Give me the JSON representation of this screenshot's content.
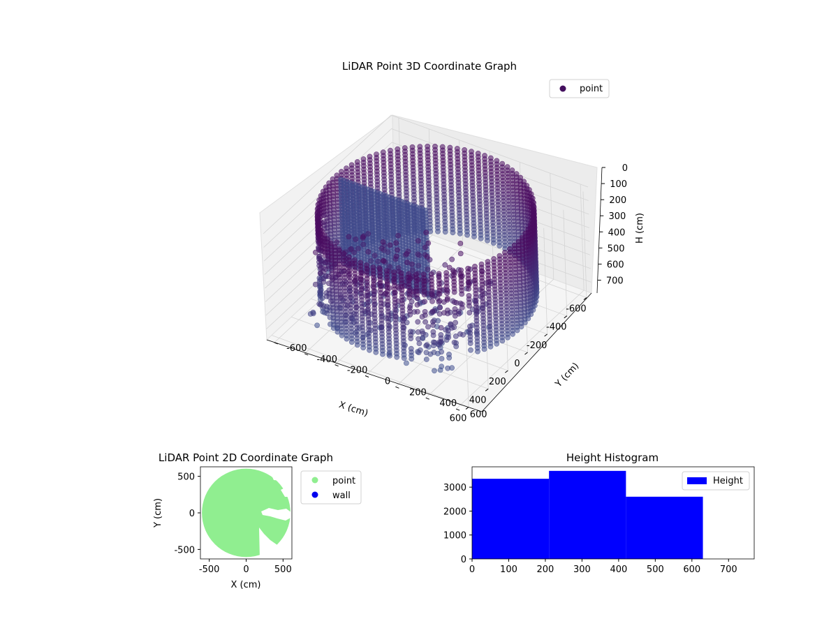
{
  "chart_data": [
    {
      "type": "scatter",
      "projection": "3d",
      "title": "LiDAR Point 3D Coordinate Graph",
      "xlabel": "X (cm)",
      "ylabel": "Y (cm)",
      "zlabel": "H (cm)",
      "xlim": [
        -650,
        650
      ],
      "ylim": [
        -650,
        650
      ],
      "zlim": [
        780,
        0
      ],
      "xticks": [
        -600,
        -400,
        -200,
        0,
        200,
        400,
        600
      ],
      "yticks": [
        -600,
        -400,
        -200,
        0,
        200,
        400,
        600
      ],
      "zticks": [
        0,
        100,
        200,
        300,
        400,
        500,
        600,
        700
      ],
      "legend": {
        "position": "top-right",
        "entries": [
          {
            "name": "point",
            "color": "#440f5e"
          }
        ]
      },
      "colormap": "viridis-purple-blue",
      "series": [
        {
          "name": "wall ring",
          "shape": "cylinder",
          "radius_cm": 600,
          "height_range_cm": [
            0,
            630
          ]
        },
        {
          "name": "scattered objects",
          "approx_region": {
            "x": [
              0,
              600
            ],
            "y": [
              -300,
              500
            ],
            "h": [
              100,
              700
            ]
          }
        }
      ],
      "grid": true
    },
    {
      "type": "scatter",
      "title": "LiDAR Point 2D Coordinate Graph",
      "xlabel": "X (cm)",
      "ylabel": "Y (cm)",
      "xlim": [
        -620,
        620
      ],
      "ylim": [
        -630,
        630
      ],
      "xticks": [
        -500,
        0,
        500
      ],
      "yticks": [
        -500,
        0,
        500
      ],
      "legend": {
        "position": "outside-right",
        "entries": [
          {
            "name": "point",
            "color": "#90ee90"
          },
          {
            "name": "wall",
            "color": "#0000ee"
          }
        ]
      },
      "series": [
        {
          "name": "point",
          "color": "#90ee90",
          "shape": "filled disk",
          "radius_cm": 600
        }
      ]
    },
    {
      "type": "bar",
      "subtype": "histogram",
      "title": "Height Histogram",
      "xlim": [
        0,
        770
      ],
      "ylim": [
        0,
        3850
      ],
      "xticks": [
        0,
        100,
        200,
        300,
        400,
        500,
        600,
        700
      ],
      "yticks": [
        0,
        1000,
        2000,
        3000
      ],
      "legend": {
        "position": "top-right",
        "entries": [
          {
            "name": "Height",
            "color": "#0000ff"
          }
        ]
      },
      "bins": [
        {
          "start": 0,
          "end": 210,
          "count": 3350
        },
        {
          "start": 210,
          "end": 420,
          "count": 3680
        },
        {
          "start": 420,
          "end": 630,
          "count": 2600
        }
      ],
      "color": "#0000ff"
    }
  ]
}
